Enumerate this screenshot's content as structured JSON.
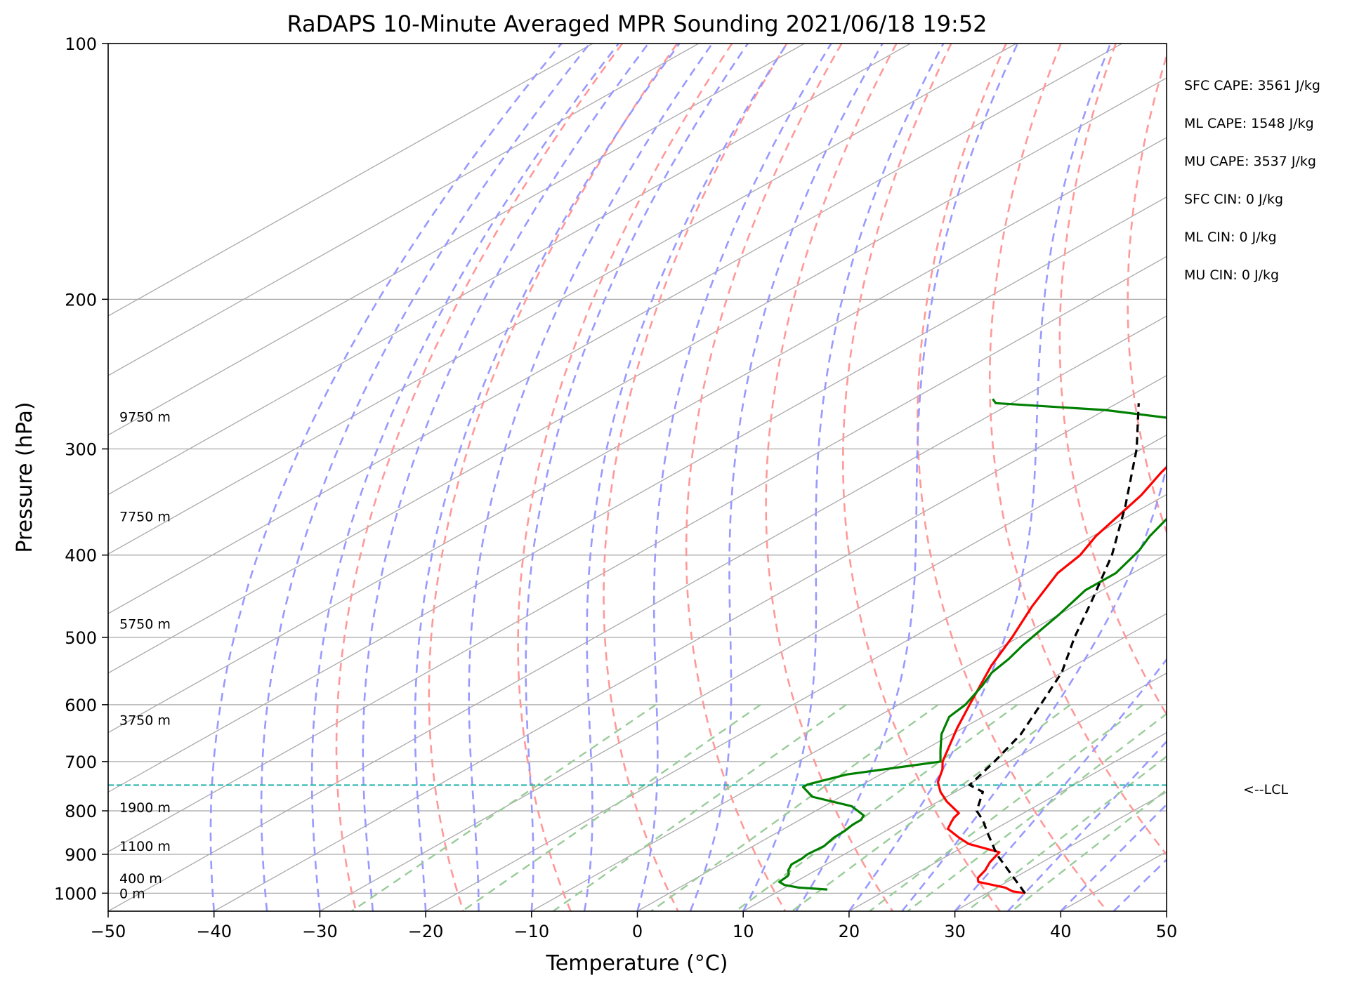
{
  "chart_data": {
    "type": "line",
    "subtype": "skew-t log-p",
    "title": "RaDAPS 10-Minute Averaged MPR Sounding 2021/06/18 19:52",
    "xlabel": "Temperature (°C)",
    "ylabel": "Pressure (hPa)",
    "xlim": [
      -50,
      50
    ],
    "ylim": [
      1050,
      100
    ],
    "y_scale": "log",
    "x_ticks": [
      -50,
      -40,
      -30,
      -20,
      -10,
      0,
      10,
      20,
      30,
      40,
      50
    ],
    "x_tick_labels": [
      "−50",
      "−40",
      "−30",
      "−20",
      "−10",
      "0",
      "10",
      "20",
      "30",
      "40",
      "50"
    ],
    "y_ticks": [
      100,
      200,
      300,
      400,
      500,
      600,
      700,
      800,
      900,
      1000
    ],
    "y_tick_labels": [
      "100",
      "200",
      "300",
      "400",
      "500",
      "600",
      "700",
      "800",
      "900",
      "1000"
    ],
    "grid": true,
    "series": [
      {
        "role": "temperature",
        "color": "#ff0000",
        "points": [
          [
            1000,
            33.6
          ],
          [
            995,
            32.1
          ],
          [
            985,
            30.8
          ],
          [
            970,
            27.3
          ],
          [
            960,
            26.6
          ],
          [
            940,
            26.0
          ],
          [
            920,
            25.1
          ],
          [
            895,
            24.3
          ],
          [
            875,
            20.0
          ],
          [
            860,
            18.0
          ],
          [
            840,
            15.5
          ],
          [
            825,
            14.7
          ],
          [
            815,
            14.2
          ],
          [
            805,
            13.9
          ],
          [
            780,
            10.8
          ],
          [
            760,
            8.6
          ],
          [
            740,
            6.7
          ],
          [
            715,
            5.0
          ],
          [
            700,
            3.7
          ],
          [
            640,
            -0.5
          ],
          [
            600,
            -3.3
          ],
          [
            540,
            -7.8
          ],
          [
            500,
            -10.6
          ],
          [
            460,
            -13.9
          ],
          [
            420,
            -17.1
          ],
          [
            400,
            -18.0
          ],
          [
            380,
            -19.7
          ],
          [
            340,
            -22.3
          ],
          [
            320,
            -24.2
          ],
          [
            306,
            -25.4
          ],
          [
            295,
            -26.4
          ],
          [
            285,
            -27.0
          ],
          [
            275,
            -27.6
          ],
          [
            265,
            -28.4
          ]
        ]
      },
      {
        "role": "dewpoint",
        "color": "#008000",
        "points": [
          [
            990,
            14.3
          ],
          [
            985,
            11.3
          ],
          [
            978,
            9.5
          ],
          [
            970,
            8.5
          ],
          [
            955,
            8.3
          ],
          [
            950,
            8.1
          ],
          [
            940,
            7.4
          ],
          [
            925,
            6.7
          ],
          [
            910,
            6.7
          ],
          [
            900,
            6.5
          ],
          [
            880,
            6.7
          ],
          [
            860,
            6.2
          ],
          [
            845,
            6.1
          ],
          [
            830,
            5.8
          ],
          [
            820,
            5.8
          ],
          [
            810,
            5.3
          ],
          [
            790,
            2.6
          ],
          [
            770,
            -2.7
          ],
          [
            750,
            -5.2
          ],
          [
            745,
            -5.2
          ],
          [
            725,
            -3.2
          ],
          [
            700,
            3.5
          ],
          [
            680,
            1.7
          ],
          [
            650,
            -1.0
          ],
          [
            620,
            -3.2
          ],
          [
            600,
            -3.7
          ],
          [
            570,
            -5.3
          ],
          [
            550,
            -6.6
          ],
          [
            530,
            -7.3
          ],
          [
            510,
            -8.3
          ],
          [
            470,
            -10.0
          ],
          [
            440,
            -11.6
          ],
          [
            420,
            -11.6
          ],
          [
            395,
            -13.2
          ],
          [
            380,
            -14.6
          ],
          [
            360,
            -16.1
          ],
          [
            340,
            -17.8
          ],
          [
            320,
            -19.3
          ],
          [
            305,
            -20.8
          ],
          [
            295,
            -21.6
          ],
          [
            278,
            -30.0
          ],
          [
            270,
            -40.0
          ],
          [
            265,
            -51.5
          ],
          [
            262,
            -52.5
          ]
        ]
      },
      {
        "role": "parcel",
        "color": "#000000",
        "style": "dashed",
        "points": [
          [
            1000,
            33.6
          ],
          [
            900,
            24.4
          ],
          [
            850,
            20.0
          ],
          [
            820,
            17.3
          ],
          [
            800,
            15.2
          ],
          [
            760,
            12.6
          ],
          [
            746,
            10.2
          ],
          [
            700,
            8.6
          ],
          [
            650,
            6.5
          ],
          [
            600,
            3.4
          ],
          [
            550,
            0.0
          ],
          [
            500,
            -4.7
          ],
          [
            450,
            -9.5
          ],
          [
            400,
            -15.0
          ],
          [
            350,
            -22.0
          ],
          [
            300,
            -30.5
          ],
          [
            265,
            -38.0
          ]
        ]
      }
    ],
    "lcl": {
      "pressure": 746,
      "label": "<--LCL",
      "color": "#20b2aa"
    },
    "height_labels": [
      {
        "text": "9750 m",
        "pressure": 275
      },
      {
        "text": "7750 m",
        "pressure": 360
      },
      {
        "text": "5750 m",
        "pressure": 482
      },
      {
        "text": "3750 m",
        "pressure": 625
      },
      {
        "text": "1900 m",
        "pressure": 792
      },
      {
        "text": "1100 m",
        "pressure": 880
      },
      {
        "text": "400 m",
        "pressure": 960
      },
      {
        "text": "0 m",
        "pressure": 1000
      }
    ],
    "annotations": [
      "SFC CAPE: 3561 J/kg",
      "ML CAPE: 1548 J/kg",
      "MU CAPE: 3537 J/kg",
      "SFC CIN: 0 J/kg",
      "ML CIN: 0 J/kg",
      "MU CIN: 0 J/kg"
    ],
    "background_lines": {
      "isotherms": {
        "color": "#a9a9a9",
        "style": "solid",
        "start": -150,
        "stop": 50,
        "step": 10
      },
      "dry_adiabats": {
        "color": "#ff9999",
        "style": "dashed",
        "theta_c": [
          -30,
          -20,
          -10,
          0,
          10,
          20,
          30,
          40,
          50,
          60,
          70,
          80,
          90,
          100,
          110,
          120,
          130,
          140,
          150,
          160,
          170
        ]
      },
      "moist_adiabats": {
        "color": "#9999ff",
        "style": "dashed",
        "start_t_c": [
          -40,
          -35,
          -30,
          -25,
          -20,
          -15,
          -10,
          -5,
          0,
          5,
          10,
          15,
          20,
          25,
          30,
          35,
          40,
          45
        ]
      },
      "mixing_ratio": {
        "color": "#99cc99",
        "style": "dashed",
        "ratios_g_per_kg": [
          0.4,
          1,
          2,
          4,
          7,
          10,
          16,
          20,
          28,
          36
        ]
      }
    }
  }
}
